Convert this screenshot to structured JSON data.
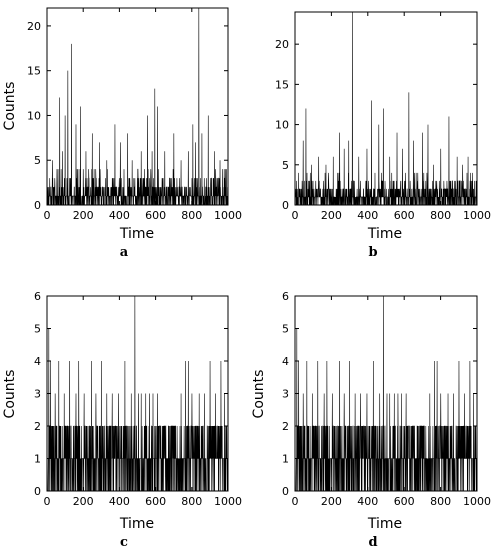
{
  "chart_data": [
    {
      "type": "line",
      "panel_label": "a",
      "xlabel": "Time",
      "ylabel": "Counts",
      "xlim": [
        0,
        1000
      ],
      "ylim": [
        0,
        22
      ],
      "x_ticks": [
        0,
        200,
        400,
        600,
        800,
        1000
      ],
      "y_ticks": [
        0,
        5,
        10,
        15,
        20
      ],
      "grid": false,
      "n_points": 1000,
      "baseline_max": 3,
      "peaks": [
        [
          15,
          3
        ],
        [
          30,
          5
        ],
        [
          55,
          4
        ],
        [
          70,
          12
        ],
        [
          85,
          6
        ],
        [
          100,
          10
        ],
        [
          115,
          15
        ],
        [
          135,
          18
        ],
        [
          160,
          9
        ],
        [
          185,
          11
        ],
        [
          215,
          6
        ],
        [
          250,
          8
        ],
        [
          290,
          7
        ],
        [
          330,
          5
        ],
        [
          375,
          9
        ],
        [
          405,
          7
        ],
        [
          445,
          8
        ],
        [
          470,
          5
        ],
        [
          520,
          6
        ],
        [
          555,
          10
        ],
        [
          580,
          6
        ],
        [
          595,
          13
        ],
        [
          610,
          11
        ],
        [
          650,
          6
        ],
        [
          700,
          8
        ],
        [
          740,
          5
        ],
        [
          780,
          6
        ],
        [
          805,
          9
        ],
        [
          820,
          7
        ],
        [
          838,
          22
        ],
        [
          855,
          8
        ],
        [
          890,
          10
        ],
        [
          925,
          6
        ],
        [
          955,
          5
        ],
        [
          985,
          4
        ]
      ]
    },
    {
      "type": "line",
      "panel_label": "b",
      "xlabel": "Time",
      "ylabel": "",
      "xlim": [
        0,
        1000
      ],
      "ylim": [
        0,
        24
      ],
      "x_ticks": [
        0,
        200,
        400,
        600,
        800,
        1000
      ],
      "y_ticks": [
        0,
        5,
        10,
        15,
        20
      ],
      "grid": false,
      "n_points": 1000,
      "baseline_max": 3,
      "peaks": [
        [
          20,
          4
        ],
        [
          45,
          8
        ],
        [
          60,
          12
        ],
        [
          90,
          5
        ],
        [
          130,
          6
        ],
        [
          170,
          5
        ],
        [
          210,
          6
        ],
        [
          245,
          9
        ],
        [
          270,
          7
        ],
        [
          295,
          8
        ],
        [
          315,
          24
        ],
        [
          350,
          6
        ],
        [
          395,
          7
        ],
        [
          420,
          13
        ],
        [
          460,
          10
        ],
        [
          485,
          12
        ],
        [
          520,
          6
        ],
        [
          560,
          9
        ],
        [
          590,
          7
        ],
        [
          625,
          14
        ],
        [
          650,
          8
        ],
        [
          700,
          9
        ],
        [
          730,
          10
        ],
        [
          760,
          5
        ],
        [
          800,
          7
        ],
        [
          845,
          11
        ],
        [
          890,
          6
        ],
        [
          920,
          5
        ],
        [
          950,
          6
        ],
        [
          975,
          4
        ]
      ]
    },
    {
      "type": "line",
      "panel_label": "c",
      "xlabel": "Time",
      "ylabel": "Counts",
      "xlim": [
        0,
        1000
      ],
      "ylim": [
        0,
        6
      ],
      "x_ticks": [
        0,
        200,
        400,
        600,
        800,
        1000
      ],
      "y_ticks": [
        0,
        1,
        2,
        3,
        4,
        5,
        6
      ],
      "grid": false,
      "n_points": 1000,
      "baseline_max": 2,
      "peaks": [
        [
          10,
          5
        ],
        [
          20,
          4
        ],
        [
          45,
          3
        ],
        [
          65,
          4
        ],
        [
          95,
          3
        ],
        [
          125,
          4
        ],
        [
          160,
          3
        ],
        [
          175,
          4
        ],
        [
          205,
          3
        ],
        [
          245,
          4
        ],
        [
          270,
          3
        ],
        [
          300,
          4
        ],
        [
          330,
          3
        ],
        [
          360,
          3
        ],
        [
          395,
          3
        ],
        [
          430,
          4
        ],
        [
          465,
          3
        ],
        [
          485,
          6
        ],
        [
          505,
          3
        ],
        [
          520,
          3
        ],
        [
          545,
          3
        ],
        [
          565,
          3
        ],
        [
          585,
          3
        ],
        [
          610,
          3
        ],
        [
          740,
          3
        ],
        [
          765,
          4
        ],
        [
          780,
          4
        ],
        [
          800,
          3
        ],
        [
          840,
          3
        ],
        [
          870,
          3
        ],
        [
          900,
          4
        ],
        [
          930,
          3
        ],
        [
          960,
          4
        ],
        [
          980,
          3
        ]
      ]
    },
    {
      "type": "line",
      "panel_label": "d",
      "xlabel": "Time",
      "ylabel": "Counts",
      "xlim": [
        0,
        1000
      ],
      "ylim": [
        0,
        6
      ],
      "x_ticks": [
        0,
        200,
        400,
        600,
        800,
        1000
      ],
      "y_ticks": [
        0,
        1,
        2,
        3,
        4,
        5,
        6
      ],
      "grid": false,
      "n_points": 1000,
      "baseline_max": 2,
      "peaks": [
        [
          10,
          5
        ],
        [
          20,
          4
        ],
        [
          45,
          3
        ],
        [
          65,
          4
        ],
        [
          95,
          3
        ],
        [
          125,
          4
        ],
        [
          160,
          3
        ],
        [
          175,
          4
        ],
        [
          205,
          3
        ],
        [
          245,
          4
        ],
        [
          270,
          3
        ],
        [
          300,
          4
        ],
        [
          330,
          3
        ],
        [
          360,
          3
        ],
        [
          395,
          3
        ],
        [
          430,
          4
        ],
        [
          465,
          3
        ],
        [
          485,
          6
        ],
        [
          505,
          3
        ],
        [
          520,
          3
        ],
        [
          545,
          3
        ],
        [
          565,
          3
        ],
        [
          585,
          3
        ],
        [
          610,
          3
        ],
        [
          740,
          3
        ],
        [
          765,
          4
        ],
        [
          780,
          4
        ],
        [
          800,
          3
        ],
        [
          840,
          3
        ],
        [
          870,
          3
        ],
        [
          900,
          4
        ],
        [
          930,
          3
        ],
        [
          960,
          4
        ],
        [
          980,
          3
        ]
      ]
    }
  ]
}
